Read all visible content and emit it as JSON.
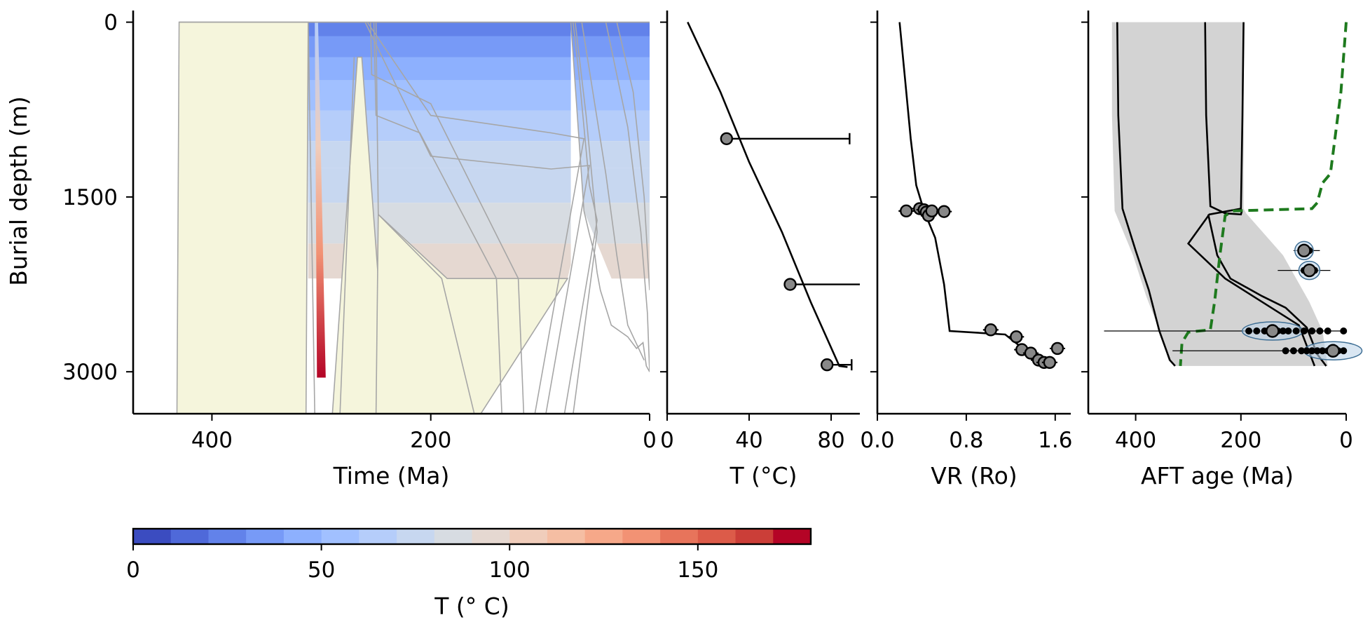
{
  "colors": {
    "axis": "#000000",
    "grey_line": "#a6a6a6",
    "cream": "#f5f5dc",
    "envelope": "#d3d3d3",
    "model": "#000000",
    "dashed": "#1e7a1e",
    "obs_marker": "#888888"
  },
  "colorbar": {
    "label": "T (° C)",
    "min": 0,
    "max": 180,
    "step": 10,
    "ticks": [
      0,
      50,
      100,
      150
    ],
    "tick_labels": [
      "0",
      "50",
      "100",
      "150"
    ],
    "colormap": "coolwarm",
    "colors": [
      "#3b4cc0",
      "#4f69d9",
      "#6282ea",
      "#779af7",
      "#8db0fe",
      "#a1c0ff",
      "#b5cdfa",
      "#c7d7f0",
      "#d7dce2",
      "#e5d8d1",
      "#f0cdbb",
      "#f5bea3",
      "#f6a889",
      "#f29274",
      "#e7745b",
      "#dc5b49",
      "#cb3e38",
      "#b40426"
    ]
  },
  "chart_data": [
    {
      "id": "burial",
      "type": "area",
      "xlabel": "Time (Ma)",
      "ylabel": "Burial depth (m)",
      "xlim": [
        472,
        0
      ],
      "ylim": [
        3360,
        -100
      ],
      "x_ticks": [
        400,
        200,
        0
      ],
      "x_tick_labels": [
        "400",
        "200",
        "0"
      ],
      "y_ticks": [
        0,
        1500,
        3000
      ],
      "y_tick_labels": [
        "0",
        "1500",
        "3000"
      ],
      "upper_edge": [
        [
          430,
          0
        ],
        [
          312,
          0
        ],
        [
          270,
          0
        ],
        [
          250,
          0
        ],
        [
          0,
          0
        ]
      ],
      "cream_region_1": [
        [
          430,
          0
        ],
        [
          312,
          0
        ],
        [
          314,
          3370
        ],
        [
          432,
          3370
        ]
      ],
      "cream_region_2": [
        [
          267,
          300
        ],
        [
          263,
          300
        ],
        [
          248,
          2200
        ],
        [
          195,
          3370
        ],
        [
          290,
          3370
        ]
      ],
      "cream_region_3": [
        [
          248,
          1650
        ],
        [
          185,
          2200
        ],
        [
          75,
          2200
        ],
        [
          155,
          3370
        ],
        [
          250,
          3370
        ]
      ],
      "temperature_bands": [
        {
          "depth_top": 0,
          "depth_bottom": 120,
          "temp": 20
        },
        {
          "depth_top": 120,
          "depth_bottom": 300,
          "temp": 30
        },
        {
          "depth_top": 300,
          "depth_bottom": 500,
          "temp": 40
        },
        {
          "depth_top": 500,
          "depth_bottom": 760,
          "temp": 50
        },
        {
          "depth_top": 760,
          "depth_bottom": 1020,
          "temp": 60
        },
        {
          "depth_top": 1020,
          "depth_bottom": 1250,
          "temp": 70
        },
        {
          "depth_top": 1250,
          "depth_bottom": 1550,
          "temp": 75
        },
        {
          "depth_top": 1550,
          "depth_bottom": 1900,
          "temp": 85
        },
        {
          "depth_top": 1900,
          "depth_bottom": 2200,
          "temp": 95
        }
      ],
      "hot_wedge": [
        [
          312,
          0
        ],
        [
          304,
          0
        ],
        [
          300,
          3040
        ],
        [
          295,
          3050
        ],
        [
          291,
          3050
        ]
      ],
      "unit_lines": [
        [
          [
            312,
            0
          ],
          [
            306,
            3370
          ]
        ],
        [
          [
            270,
            300
          ],
          [
            283,
            3370
          ]
        ],
        [
          [
            250,
            0
          ],
          [
            248,
            1650
          ],
          [
            190,
            2200
          ],
          [
            160,
            3370
          ]
        ],
        [
          [
            252,
            0
          ],
          [
            250,
            800
          ],
          [
            210,
            950
          ],
          [
            140,
            2200
          ],
          [
            135,
            3370
          ]
        ],
        [
          [
            255,
            0
          ],
          [
            254,
            450
          ],
          [
            200,
            700
          ],
          [
            120,
            2200
          ],
          [
            115,
            3370
          ]
        ],
        [
          [
            258,
            0
          ],
          [
            200,
            800
          ],
          [
            90,
            950
          ],
          [
            60,
            1000
          ],
          [
            105,
            3370
          ]
        ],
        [
          [
            260,
            0
          ],
          [
            200,
            1150
          ],
          [
            90,
            1260
          ],
          [
            55,
            1230
          ],
          [
            95,
            3370
          ]
        ],
        [
          [
            70,
            0
          ],
          [
            64,
            500
          ],
          [
            55,
            1400
          ],
          [
            48,
            1700
          ],
          [
            78,
            3370
          ]
        ],
        [
          [
            68,
            0
          ],
          [
            58,
            800
          ],
          [
            48,
            1800
          ],
          [
            70,
            3370
          ]
        ],
        [
          [
            62,
            0
          ],
          [
            40,
            1300
          ],
          [
            30,
            2000
          ],
          [
            20,
            2600
          ],
          [
            5,
            2900
          ]
        ],
        [
          [
            40,
            0
          ],
          [
            20,
            900
          ],
          [
            8,
            1800
          ],
          [
            2,
            2500
          ],
          [
            0,
            3000
          ]
        ],
        [
          [
            30,
            0
          ],
          [
            15,
            600
          ],
          [
            5,
            1500
          ],
          [
            0,
            2300
          ]
        ]
      ],
      "right_spike_profile": [
        [
          72,
          0
        ],
        [
          60,
          1620
        ],
        [
          55,
          1820
        ],
        [
          50,
          2000
        ],
        [
          48,
          2150
        ],
        [
          45,
          2300
        ],
        [
          35,
          2600
        ],
        [
          20,
          2700
        ],
        [
          12,
          2800
        ],
        [
          6,
          2750
        ],
        [
          3,
          2950
        ],
        [
          0,
          3000
        ]
      ]
    },
    {
      "id": "temperature",
      "type": "scatter",
      "xlabel": "T (°C)",
      "xlim": [
        0,
        94
      ],
      "ylim": [
        3360,
        -100
      ],
      "x_ticks": [
        0,
        40,
        80
      ],
      "x_tick_labels": [
        "0",
        "40",
        "80"
      ],
      "model": [
        [
          10,
          0
        ],
        [
          26,
          600
        ],
        [
          40,
          1200
        ],
        [
          56,
          1800
        ],
        [
          70,
          2400
        ],
        [
          84,
          2950
        ],
        [
          88,
          2960
        ]
      ],
      "observed": [
        {
          "x": 29,
          "y": 1000,
          "xerr_plus": 60
        },
        {
          "x": 60,
          "y": 2250,
          "xerr_plus": 35
        },
        {
          "x": 78,
          "y": 2940,
          "xerr_plus": 12
        }
      ]
    },
    {
      "id": "vitrinite",
      "type": "scatter",
      "xlabel": "VR (Ro)",
      "xlim": [
        0,
        1.74
      ],
      "ylim": [
        3360,
        -100
      ],
      "x_ticks": [
        0.0,
        0.8,
        1.6
      ],
      "x_tick_labels": [
        "0.0",
        "0.8",
        "1.6"
      ],
      "model": [
        [
          0.2,
          0
        ],
        [
          0.25,
          500
        ],
        [
          0.3,
          1000
        ],
        [
          0.35,
          1400
        ],
        [
          0.42,
          1620
        ],
        [
          0.52,
          1850
        ],
        [
          0.6,
          2250
        ],
        [
          0.65,
          2650
        ],
        [
          1.15,
          2680
        ],
        [
          1.35,
          2830
        ],
        [
          1.55,
          2950
        ]
      ],
      "observed": [
        {
          "x": 0.26,
          "y": 1620
        },
        {
          "x": 0.38,
          "y": 1600
        },
        {
          "x": 0.42,
          "y": 1610
        },
        {
          "x": 0.44,
          "y": 1630
        },
        {
          "x": 0.46,
          "y": 1660
        },
        {
          "x": 0.49,
          "y": 1620
        },
        {
          "x": 0.6,
          "y": 1625
        },
        {
          "x": 1.02,
          "y": 2640
        },
        {
          "x": 1.25,
          "y": 2700
        },
        {
          "x": 1.3,
          "y": 2810
        },
        {
          "x": 1.38,
          "y": 2840
        },
        {
          "x": 1.45,
          "y": 2900
        },
        {
          "x": 1.5,
          "y": 2920
        },
        {
          "x": 1.55,
          "y": 2920
        },
        {
          "x": 1.62,
          "y": 2800
        }
      ]
    },
    {
      "id": "aft",
      "type": "scatter",
      "xlabel": "AFT age (Ma)",
      "xlim": [
        490,
        0
      ],
      "ylim": [
        3360,
        -100
      ],
      "x_ticks": [
        400,
        200,
        0
      ],
      "x_tick_labels": [
        "400",
        "200",
        "0"
      ],
      "envelope_left": [
        [
          445,
          0
        ],
        [
          445,
          800
        ],
        [
          440,
          1620
        ],
        [
          405,
          2000
        ],
        [
          380,
          2350
        ],
        [
          350,
          2700
        ],
        [
          338,
          2900
        ],
        [
          325,
          2950
        ]
      ],
      "envelope_right": [
        [
          195,
          0
        ],
        [
          195,
          1600
        ],
        [
          190,
          1640
        ],
        [
          120,
          2000
        ],
        [
          70,
          2400
        ],
        [
          45,
          2650
        ],
        [
          35,
          2950
        ]
      ],
      "model_lines": [
        [
          [
            435,
            0
          ],
          [
            433,
            800
          ],
          [
            425,
            1600
          ],
          [
            400,
            1960
          ],
          [
            375,
            2300
          ],
          [
            355,
            2650
          ],
          [
            335,
            2900
          ],
          [
            325,
            2950
          ]
        ],
        [
          [
            268,
            0
          ],
          [
            266,
            800
          ],
          [
            258,
            1580
          ],
          [
            230,
            1640
          ],
          [
            200,
            1650
          ],
          [
            198,
            1620
          ]
        ],
        [
          [
            262,
            1650
          ],
          [
            245,
            2000
          ],
          [
            220,
            2200
          ],
          [
            160,
            2350
          ],
          [
            115,
            2450
          ],
          [
            75,
            2620
          ],
          [
            55,
            2850
          ],
          [
            38,
            2950
          ]
        ],
        [
          [
            195,
            0
          ],
          [
            197,
            800
          ],
          [
            200,
            1600
          ],
          [
            260,
            1650
          ],
          [
            300,
            1900
          ],
          [
            230,
            2200
          ],
          [
            90,
            2600
          ],
          [
            60,
            2950
          ]
        ]
      ],
      "dashed_line": [
        [
          0,
          0
        ],
        [
          10,
          600
        ],
        [
          30,
          1300
        ],
        [
          45,
          1380
        ],
        [
          55,
          1550
        ],
        [
          65,
          1600
        ],
        [
          215,
          1620
        ],
        [
          230,
          1660
        ],
        [
          240,
          2000
        ],
        [
          250,
          2400
        ],
        [
          258,
          2640
        ],
        [
          300,
          2660
        ],
        [
          312,
          2750
        ],
        [
          315,
          2950
        ]
      ],
      "clusters": [
        {
          "center": 80,
          "y": 1960,
          "spread": [
            100,
            50
          ],
          "width": 35,
          "points": [
            75,
            80,
            70
          ]
        },
        {
          "center": 70,
          "y": 2130,
          "spread": [
            130,
            30
          ],
          "width": 40,
          "points": [
            60,
            70,
            80,
            75
          ]
        },
        {
          "center": 140,
          "y": 2650,
          "spread": [
            460,
            0
          ],
          "width": 115,
          "points": [
            185,
            170,
            155,
            145,
            130,
            120,
            110,
            95,
            80,
            65,
            50,
            35,
            5
          ]
        },
        {
          "center": 25,
          "y": 2820,
          "spread": [
            330,
            0
          ],
          "width": 110,
          "points": [
            115,
            100,
            85,
            75,
            65,
            55,
            45,
            35,
            25,
            15,
            5
          ]
        }
      ]
    }
  ]
}
